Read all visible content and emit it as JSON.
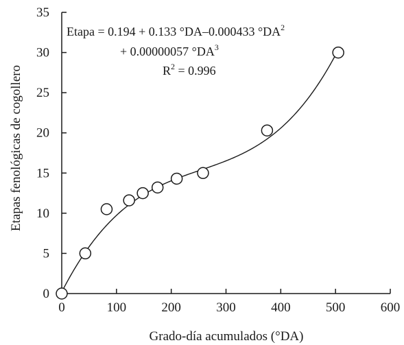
{
  "chart_data": {
    "type": "scatter",
    "xlabel": "Grado-día acumulados (°DA)",
    "ylabel": "Etapas fenológicas de cogollero",
    "xlim": [
      0,
      600
    ],
    "ylim": [
      0,
      35
    ],
    "xticks": [
      0,
      100,
      200,
      300,
      400,
      500,
      600
    ],
    "yticks": [
      0,
      5,
      10,
      15,
      20,
      25,
      30,
      35
    ],
    "grid": false,
    "legend": "none",
    "series": [
      {
        "points": [
          {
            "x": 0,
            "y": 0
          },
          {
            "x": 43,
            "y": 5
          },
          {
            "x": 82,
            "y": 10.5
          },
          {
            "x": 123,
            "y": 11.6
          },
          {
            "x": 148,
            "y": 12.5
          },
          {
            "x": 175,
            "y": 13.2
          },
          {
            "x": 210,
            "y": 14.3
          },
          {
            "x": 258,
            "y": 15
          },
          {
            "x": 375,
            "y": 20.3
          },
          {
            "x": 505,
            "y": 30
          }
        ]
      }
    ],
    "fit": {
      "type": "polynomial",
      "coefficients": [
        0.194,
        0.133,
        -0.000433,
        5.7e-07
      ],
      "x_range": [
        0,
        505
      ]
    },
    "annotations": {
      "equation_line1": "Etapa = 0.194 + 0.133 °DA–0.000433 °DA",
      "equation_line1_sup": "2",
      "equation_line2": "+ 0.00000057 °DA",
      "equation_line2_sup": "3",
      "r2_prefix": "R",
      "r2_sup": "2",
      "r2_value": " = 0.996"
    }
  }
}
